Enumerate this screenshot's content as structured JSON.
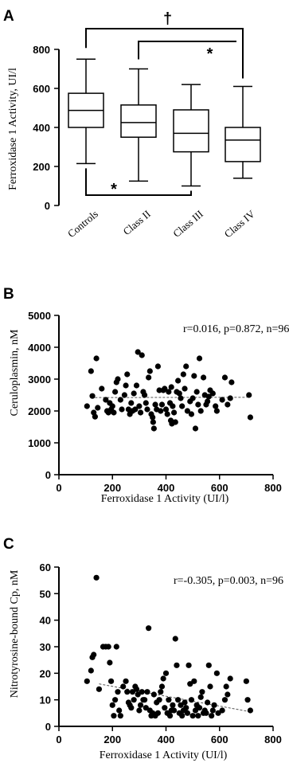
{
  "chart_data": [
    {
      "panel": "A",
      "type": "box",
      "ylabel": "Ferroxidase 1 Activity, UI/l",
      "ylim": [
        0,
        800
      ],
      "yticks": [
        0,
        200,
        400,
        600,
        800
      ],
      "categories": [
        "Controls",
        "Class II",
        "Class III",
        "Class IV"
      ],
      "boxes": [
        {
          "min": 215,
          "q1": 400,
          "median": 487,
          "q3": 575,
          "max": 750
        },
        {
          "min": 125,
          "q1": 350,
          "median": 425,
          "q3": 515,
          "max": 700
        },
        {
          "min": 100,
          "q1": 275,
          "median": 370,
          "q3": 490,
          "max": 620
        },
        {
          "min": 140,
          "q1": 225,
          "median": 335,
          "q3": 400,
          "max": 610
        }
      ],
      "significance": [
        {
          "from": 0,
          "to": 3,
          "symbol": "†",
          "position": "top"
        },
        {
          "from": 1,
          "to": 3,
          "symbol": "*",
          "position": "top"
        },
        {
          "from": 0,
          "to": 2,
          "symbol": "*",
          "position": "bottom"
        }
      ]
    },
    {
      "panel": "B",
      "type": "scatter",
      "xlabel": "Ferroxidase 1 Activity (UI/l)",
      "ylabel": "Ceruloplasmin, nM",
      "xlim": [
        0,
        800
      ],
      "ylim": [
        0,
        5000
      ],
      "xticks": [
        0,
        200,
        400,
        600,
        800
      ],
      "yticks": [
        0,
        1000,
        2000,
        3000,
        4000,
        5000
      ],
      "annotation": "r=0.016, p=0.872, n=96",
      "trendline": {
        "x": [
          120,
          715
        ],
        "y": [
          2420,
          2430
        ]
      },
      "points": [
        [
          105,
          2150
        ],
        [
          120,
          3250
        ],
        [
          125,
          2470
        ],
        [
          130,
          1950
        ],
        [
          135,
          1820
        ],
        [
          140,
          3650
        ],
        [
          145,
          2100
        ],
        [
          160,
          2700
        ],
        [
          175,
          2350
        ],
        [
          180,
          2000
        ],
        [
          185,
          1950
        ],
        [
          190,
          2250
        ],
        [
          195,
          2050
        ],
        [
          200,
          2150
        ],
        [
          205,
          1950
        ],
        [
          210,
          2600
        ],
        [
          215,
          2900
        ],
        [
          220,
          3000
        ],
        [
          230,
          2350
        ],
        [
          235,
          2050
        ],
        [
          245,
          2500
        ],
        [
          250,
          2800
        ],
        [
          255,
          3150
        ],
        [
          260,
          2050
        ],
        [
          265,
          1900
        ],
        [
          270,
          2250
        ],
        [
          275,
          2000
        ],
        [
          280,
          2550
        ],
        [
          285,
          2050
        ],
        [
          290,
          2800
        ],
        [
          295,
          3850
        ],
        [
          300,
          2150
        ],
        [
          305,
          1950
        ],
        [
          310,
          3750
        ],
        [
          315,
          2600
        ],
        [
          320,
          2500
        ],
        [
          325,
          2250
        ],
        [
          330,
          2050
        ],
        [
          335,
          3050
        ],
        [
          340,
          3250
        ],
        [
          345,
          1900
        ],
        [
          350,
          1800
        ],
        [
          352,
          1650
        ],
        [
          355,
          1450
        ],
        [
          360,
          2200
        ],
        [
          365,
          2050
        ],
        [
          370,
          3400
        ],
        [
          375,
          2650
        ],
        [
          380,
          2000
        ],
        [
          385,
          2200
        ],
        [
          390,
          2650
        ],
        [
          395,
          2700
        ],
        [
          400,
          2050
        ],
        [
          405,
          1900
        ],
        [
          410,
          2600
        ],
        [
          415,
          2250
        ],
        [
          418,
          1700
        ],
        [
          420,
          2750
        ],
        [
          422,
          1600
        ],
        [
          425,
          2150
        ],
        [
          430,
          1950
        ],
        [
          435,
          1650
        ],
        [
          440,
          2600
        ],
        [
          445,
          2950
        ],
        [
          450,
          2550
        ],
        [
          455,
          2400
        ],
        [
          460,
          2150
        ],
        [
          465,
          3150
        ],
        [
          470,
          2700
        ],
        [
          475,
          3400
        ],
        [
          480,
          2000
        ],
        [
          490,
          2300
        ],
        [
          495,
          1900
        ],
        [
          500,
          2400
        ],
        [
          505,
          3100
        ],
        [
          510,
          1450
        ],
        [
          515,
          2600
        ],
        [
          520,
          2200
        ],
        [
          525,
          3650
        ],
        [
          530,
          2000
        ],
        [
          540,
          3050
        ],
        [
          545,
          2500
        ],
        [
          550,
          2200
        ],
        [
          555,
          2300
        ],
        [
          560,
          2450
        ],
        [
          565,
          2650
        ],
        [
          575,
          2550
        ],
        [
          585,
          2150
        ],
        [
          590,
          2000
        ],
        [
          610,
          2350
        ],
        [
          620,
          3050
        ],
        [
          630,
          2200
        ],
        [
          640,
          2400
        ],
        [
          645,
          2900
        ],
        [
          710,
          2500
        ],
        [
          715,
          1800
        ]
      ]
    },
    {
      "panel": "C",
      "type": "scatter",
      "xlabel": "Ferroxidase 1 Activity (UI/l)",
      "ylabel": "Nitrotyrosine-bound Cp, nM",
      "xlim": [
        0,
        800
      ],
      "ylim": [
        0,
        60
      ],
      "xticks": [
        0,
        200,
        400,
        600,
        800
      ],
      "yticks": [
        0,
        10,
        20,
        30,
        40,
        50,
        60
      ],
      "annotation": "r=-0.305, p=0.003, n=96",
      "trendline": {
        "x": [
          150,
          715
        ],
        "y": [
          16,
          5.5
        ]
      },
      "points": [
        [
          105,
          17
        ],
        [
          120,
          21
        ],
        [
          125,
          26
        ],
        [
          130,
          27
        ],
        [
          140,
          56
        ],
        [
          150,
          14
        ],
        [
          165,
          30
        ],
        [
          175,
          30
        ],
        [
          185,
          30
        ],
        [
          190,
          24
        ],
        [
          195,
          17
        ],
        [
          200,
          8
        ],
        [
          205,
          4
        ],
        [
          210,
          10
        ],
        [
          215,
          30
        ],
        [
          220,
          13
        ],
        [
          225,
          6
        ],
        [
          230,
          4
        ],
        [
          240,
          15
        ],
        [
          250,
          17
        ],
        [
          255,
          13
        ],
        [
          260,
          9
        ],
        [
          265,
          8
        ],
        [
          270,
          7
        ],
        [
          275,
          13
        ],
        [
          280,
          10
        ],
        [
          285,
          15
        ],
        [
          290,
          14
        ],
        [
          295,
          12
        ],
        [
          300,
          6
        ],
        [
          305,
          8
        ],
        [
          310,
          13
        ],
        [
          315,
          10
        ],
        [
          320,
          10
        ],
        [
          325,
          7
        ],
        [
          330,
          13
        ],
        [
          335,
          37
        ],
        [
          340,
          6
        ],
        [
          345,
          4
        ],
        [
          350,
          5
        ],
        [
          355,
          12
        ],
        [
          360,
          4
        ],
        [
          365,
          9
        ],
        [
          370,
          5
        ],
        [
          375,
          10
        ],
        [
          380,
          13
        ],
        [
          385,
          15
        ],
        [
          390,
          18
        ],
        [
          395,
          7
        ],
        [
          400,
          20
        ],
        [
          405,
          5
        ],
        [
          410,
          10
        ],
        [
          415,
          4
        ],
        [
          420,
          6
        ],
        [
          425,
          8
        ],
        [
          430,
          6
        ],
        [
          435,
          33
        ],
        [
          440,
          23
        ],
        [
          445,
          10
        ],
        [
          450,
          5
        ],
        [
          455,
          8
        ],
        [
          460,
          4
        ],
        [
          465,
          6
        ],
        [
          470,
          9
        ],
        [
          475,
          7
        ],
        [
          480,
          5
        ],
        [
          485,
          23
        ],
        [
          490,
          16
        ],
        [
          495,
          10
        ],
        [
          500,
          4
        ],
        [
          505,
          17
        ],
        [
          510,
          6
        ],
        [
          515,
          8
        ],
        [
          520,
          4
        ],
        [
          525,
          7
        ],
        [
          530,
          11
        ],
        [
          535,
          13
        ],
        [
          540,
          5
        ],
        [
          545,
          6
        ],
        [
          550,
          5
        ],
        [
          555,
          9
        ],
        [
          560,
          23
        ],
        [
          565,
          15
        ],
        [
          570,
          4
        ],
        [
          575,
          6
        ],
        [
          580,
          8
        ],
        [
          590,
          20
        ],
        [
          595,
          5
        ],
        [
          610,
          6
        ],
        [
          620,
          10
        ],
        [
          625,
          15
        ],
        [
          630,
          12
        ],
        [
          640,
          18
        ],
        [
          700,
          17
        ],
        [
          705,
          10
        ],
        [
          715,
          6
        ]
      ]
    }
  ]
}
